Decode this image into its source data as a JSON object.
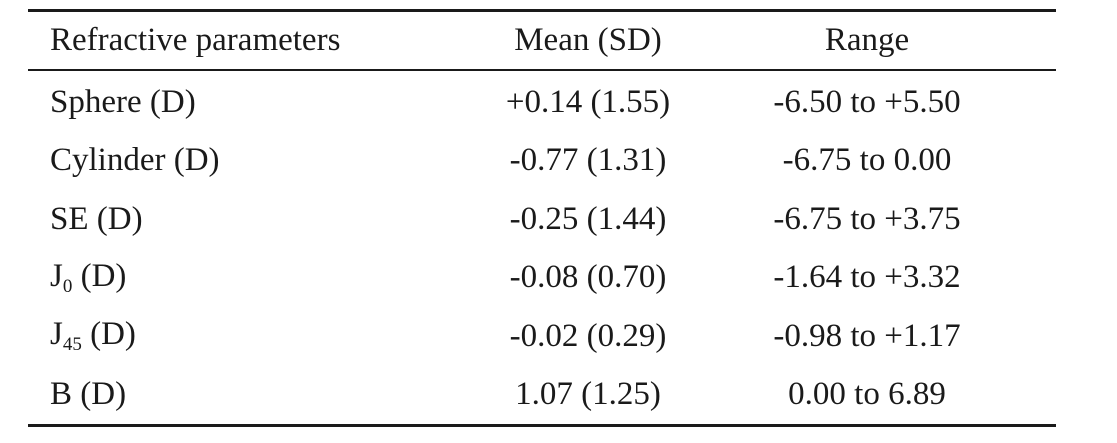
{
  "table": {
    "headers": {
      "parameter": "Refractive parameters",
      "mean": "Mean (SD)",
      "range": "Range"
    },
    "rows": [
      {
        "base": "Sphere",
        "sub": "",
        "unit": " (D)",
        "mean": "+0.14 (1.55)",
        "range": "-6.50 to +5.50"
      },
      {
        "base": "Cylinder",
        "sub": "",
        "unit": " (D)",
        "mean": "-0.77 (1.31)",
        "range": "-6.75 to 0.00"
      },
      {
        "base": "SE",
        "sub": "",
        "unit": " (D)",
        "mean": "-0.25 (1.44)",
        "range": "-6.75 to +3.75"
      },
      {
        "base": "J",
        "sub": "0",
        "unit": " (D)",
        "mean": "-0.08 (0.70)",
        "range": "-1.64 to +3.32"
      },
      {
        "base": "J",
        "sub": "45",
        "unit": " (D)",
        "mean": "-0.02 (0.29)",
        "range": "-0.98 to +1.17"
      },
      {
        "base": "B",
        "sub": "",
        "unit": " (D)",
        "mean": "1.07 (1.25)",
        "range": "0.00 to 6.89"
      }
    ]
  }
}
